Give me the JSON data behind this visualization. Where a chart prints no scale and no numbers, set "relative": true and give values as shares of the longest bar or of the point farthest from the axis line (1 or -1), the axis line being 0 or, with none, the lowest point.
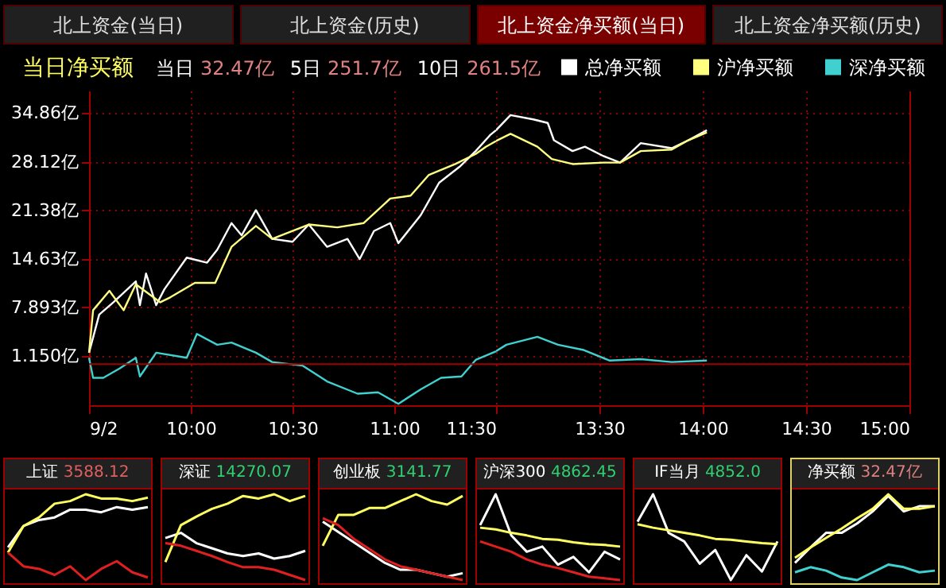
{
  "chart_data": [
    {
      "type": "other",
      "annotations": [
        "北上资金(当日)",
        "北上资金(历史)",
        "北上资金净买额(当日)",
        "北上资金净买额(历史)"
      ]
    },
    {
      "type": "line",
      "title": "当日净买额",
      "annotations": [
        "当日",
        "32.47亿",
        "5日",
        "251.7亿",
        "10日",
        "261.5亿"
      ],
      "xlim": [
        9.5,
        11.5
      ],
      "xticks": [
        {
          "value": 9.5,
          "label": "9/2"
        },
        {
          "value": 10,
          "label": "10:00"
        },
        {
          "value": 10.5,
          "label": "10:30"
        },
        {
          "value": 11,
          "label": "11:00"
        },
        {
          "value": 11.5,
          "label": "11:30"
        }
      ],
      "ylim": [
        -5.7,
        38
      ],
      "yticks": [
        {
          "value": 1.15,
          "label": "1.150亿"
        },
        {
          "value": 7.893,
          "label": "7.893亿"
        },
        {
          "value": 14.63,
          "label": "14.63亿"
        },
        {
          "value": 21.38,
          "label": "21.38亿"
        },
        {
          "value": 28.12,
          "label": "28.12亿"
        },
        {
          "value": 34.86,
          "label": "34.86亿"
        }
      ],
      "grid": true,
      "ref_lines": [
        {
          "axis": "y",
          "value": 0,
          "color": "#a00000"
        }
      ],
      "series": [
        {
          "color": "#ffffff",
          "x": [
            9.5,
            9.55,
            9.62,
            9.73,
            9.75,
            9.78,
            9.83,
            9.87,
            9.98,
            10.08,
            10.13,
            10.2,
            10.25,
            10.32,
            10.4,
            10.5,
            10.58,
            10.67,
            10.77,
            10.83,
            10.9,
            10.98,
            11.02,
            11.13,
            11.22,
            11.32,
            11.4,
            11.47,
            11.5
          ],
          "values": [
            1.6,
            6.9,
            8.6,
            11.5,
            8.2,
            12.6,
            8.2,
            10.4,
            14.8,
            14.1,
            15.9,
            19.6,
            17.9,
            21.4,
            17.4,
            17.0,
            19.4,
            16.3,
            17.4,
            14.6,
            18.5,
            19.6,
            16.8,
            20.7,
            25.2,
            27.4,
            29.6,
            31.8,
            32.5
          ]
        },
        {
          "color": "#ffff80",
          "x": [
            9.5,
            9.52,
            9.6,
            9.67,
            9.73,
            9.85,
            9.9,
            10.02,
            10.12,
            10.2,
            10.32,
            10.4,
            10.58,
            10.72,
            10.85,
            10.98,
            11.08,
            11.17,
            11.3,
            11.4,
            11.45,
            11.5
          ],
          "values": [
            1.6,
            7.5,
            10.2,
            7.5,
            11.1,
            8.6,
            9.3,
            11.3,
            11.3,
            16.3,
            19.2,
            17.4,
            19.4,
            19.0,
            19.6,
            23.0,
            23.4,
            26.3,
            27.8,
            29.2,
            30.2,
            31.0
          ]
        },
        {
          "color": "#40d0d0",
          "x": [
            9.5,
            9.52,
            9.57,
            9.65,
            9.73,
            9.75,
            9.83,
            9.98,
            10.03,
            10.13,
            10.2,
            10.32,
            10.4,
            10.55,
            10.67,
            10.82,
            10.92,
            11.02,
            11.13,
            11.23,
            11.33,
            11.4,
            11.5
          ],
          "values": [
            0.9,
            -1.9,
            -1.9,
            -0.6,
            0.9,
            -1.7,
            1.6,
            0.9,
            4.2,
            2.7,
            3.0,
            1.6,
            0.3,
            -0.2,
            -2.4,
            -4.1,
            -3.9,
            -5.5,
            -3.5,
            -1.9,
            -1.7,
            0.6,
            1.8
          ]
        }
      ]
    },
    {
      "type": "line",
      "tick_labels": "x",
      "legend": "top right",
      "xlim": [
        13,
        15
      ],
      "xticks": [
        {
          "value": 13.5,
          "label": "13:30"
        },
        {
          "value": 14,
          "label": "14:00"
        },
        {
          "value": 14.5,
          "label": "14:30"
        },
        {
          "value": 15,
          "label": "15:00"
        }
      ],
      "ylim": [
        -5.7,
        38
      ],
      "yticks": [
        {
          "value": 1.15,
          "label": null
        },
        {
          "value": 7.893,
          "label": null
        },
        {
          "value": 14.63,
          "label": null
        },
        {
          "value": 21.38,
          "label": null
        },
        {
          "value": 28.12,
          "label": null
        },
        {
          "value": 34.86,
          "label": null
        }
      ],
      "grid": true,
      "ref_lines": [
        {
          "axis": "y",
          "value": 0,
          "color": "#a00000"
        }
      ],
      "series": [
        {
          "name": "总净买额",
          "color": "#ffffff",
          "x": [
            13,
            13.07,
            13.18,
            13.25,
            13.28,
            13.37,
            13.43,
            13.52,
            13.6,
            13.7,
            13.85,
            13.93,
            14.02
          ],
          "values": [
            32.5,
            34.6,
            34.0,
            33.5,
            31.1,
            29.6,
            30.2,
            28.9,
            28.0,
            30.7,
            30.0,
            31.1,
            32.5
          ]
        },
        {
          "name": "沪净买额",
          "color": "#ffff80",
          "x": [
            13,
            13.07,
            13.2,
            13.27,
            13.37,
            13.52,
            13.6,
            13.7,
            13.85,
            13.93,
            14.02
          ],
          "values": [
            31.0,
            32.0,
            30.2,
            28.5,
            27.8,
            28.0,
            28.0,
            29.6,
            29.8,
            31.1,
            32.2
          ]
        },
        {
          "name": "深净买额",
          "color": "#40d0d0",
          "x": [
            13,
            13.05,
            13.2,
            13.3,
            13.42,
            13.55,
            13.7,
            13.85,
            14.02
          ],
          "values": [
            1.8,
            2.7,
            3.8,
            2.7,
            2.0,
            0.5,
            0.7,
            0.3,
            0.5
          ]
        }
      ]
    },
    {
      "type": "line",
      "relative": true,
      "title": "上证",
      "subtitle": "3588.12",
      "tick_labels": false,
      "categories": [
        null,
        null,
        null,
        null,
        null,
        null,
        null,
        null,
        null,
        null
      ],
      "series": [
        {
          "color": "#ffffff",
          "values": [
            0.38,
            0.63,
            0.7,
            0.73,
            0.82,
            0.82,
            0.79,
            0.85,
            0.82,
            0.85
          ]
        },
        {
          "color": "#ffff60",
          "values": [
            0.32,
            0.63,
            0.73,
            0.89,
            0.92,
            1,
            0.95,
            0.95,
            0.92,
            0.96
          ]
        },
        {
          "color": "#e02020",
          "values": [
            0.32,
            0.16,
            0.13,
            0.06,
            0.16,
            0,
            0.13,
            0.22,
            0.09,
            0.03
          ]
        }
      ]
    },
    {
      "type": "line",
      "relative": true,
      "title": "深证",
      "subtitle": "14270.07",
      "tick_labels": false,
      "categories": [
        null,
        null,
        null,
        null,
        null,
        null,
        null,
        null,
        null,
        null
      ],
      "series": [
        {
          "color": "#ffffff",
          "values": [
            0.49,
            0.55,
            0.43,
            0.37,
            0.31,
            0.28,
            0.31,
            0.25,
            0.28,
            0.34
          ]
        },
        {
          "color": "#ffff60",
          "values": [
            0.21,
            0.64,
            0.74,
            0.83,
            0.89,
            0.98,
            0.95,
            1,
            0.92,
            0.98
          ]
        },
        {
          "color": "#e02020",
          "values": [
            0.43,
            0.4,
            0.34,
            0.28,
            0.21,
            0.15,
            0.15,
            0.12,
            0.06,
            0
          ]
        }
      ]
    },
    {
      "type": "line",
      "relative": true,
      "title": "创业板",
      "subtitle": "3141.77",
      "tick_labels": false,
      "categories": [
        null,
        null,
        null,
        null,
        null,
        null,
        null,
        null,
        null,
        null
      ],
      "series": [
        {
          "color": "#ffffff",
          "values": [
            0.68,
            0.56,
            0.44,
            0.32,
            0.2,
            0.12,
            0.12,
            0.08,
            0.04,
            0.08
          ]
        },
        {
          "color": "#ffff60",
          "values": [
            0.4,
            0.76,
            0.76,
            0.84,
            0.84,
            0.92,
            1,
            0.92,
            0.88,
            0.98
          ]
        },
        {
          "color": "#e02020",
          "values": [
            0.72,
            0.64,
            0.48,
            0.36,
            0.24,
            0.16,
            0.12,
            0.08,
            0.04,
            0
          ]
        }
      ]
    },
    {
      "type": "line",
      "relative": true,
      "title": "沪深300",
      "subtitle": "4862.45",
      "tick_labels": false,
      "categories": [
        null,
        null,
        null,
        null,
        null,
        null,
        null,
        null,
        null,
        null
      ],
      "series": [
        {
          "color": "#ffffff",
          "values": [
            0.64,
            1,
            0.52,
            0.33,
            0.39,
            0.18,
            0.27,
            0.09,
            0.33,
            0.24
          ]
        },
        {
          "color": "#ffff60",
          "values": [
            0.61,
            0.59,
            0.55,
            0.52,
            0.48,
            0.47,
            0.44,
            0.42,
            0.41,
            0.39
          ]
        },
        {
          "color": "#e02020",
          "values": [
            0.45,
            0.39,
            0.33,
            0.24,
            0.18,
            0.14,
            0.09,
            0.04,
            0.02,
            0
          ]
        }
      ]
    },
    {
      "type": "line",
      "relative": true,
      "title": "IF当月",
      "subtitle": "4852.0",
      "tick_labels": false,
      "categories": [
        null,
        null,
        null,
        null,
        null,
        null,
        null,
        null,
        null,
        null
      ],
      "series": [
        {
          "color": "#ffffff",
          "values": [
            0.68,
            1,
            0.55,
            0.45,
            0.19,
            0.35,
            0,
            0.29,
            0.1,
            0.45
          ]
        },
        {
          "color": "#ffff60",
          "values": [
            0.65,
            0.61,
            0.58,
            0.55,
            0.52,
            0.48,
            0.47,
            0.45,
            0.43,
            0.42
          ]
        }
      ]
    },
    {
      "type": "line",
      "relative": true,
      "title": "净买额",
      "subtitle": "32.47亿",
      "tick_labels": false,
      "categories": [
        null,
        null,
        null,
        null,
        null,
        null,
        null,
        null,
        null,
        null
      ],
      "series": [
        {
          "color": "#ffffff",
          "values": [
            0.2,
            0.38,
            0.55,
            0.55,
            0.66,
            0.8,
            0.98,
            0.8,
            0.86,
            0.86
          ]
        },
        {
          "color": "#ffff60",
          "values": [
            0.26,
            0.38,
            0.49,
            0.6,
            0.72,
            0.83,
            1,
            0.83,
            0.83,
            0.86
          ]
        },
        {
          "color": "#40d0d0",
          "values": [
            0.09,
            0.15,
            0.11,
            0.03,
            0,
            0.09,
            0.18,
            0.15,
            0.09,
            0.11
          ]
        }
      ]
    }
  ]
}
